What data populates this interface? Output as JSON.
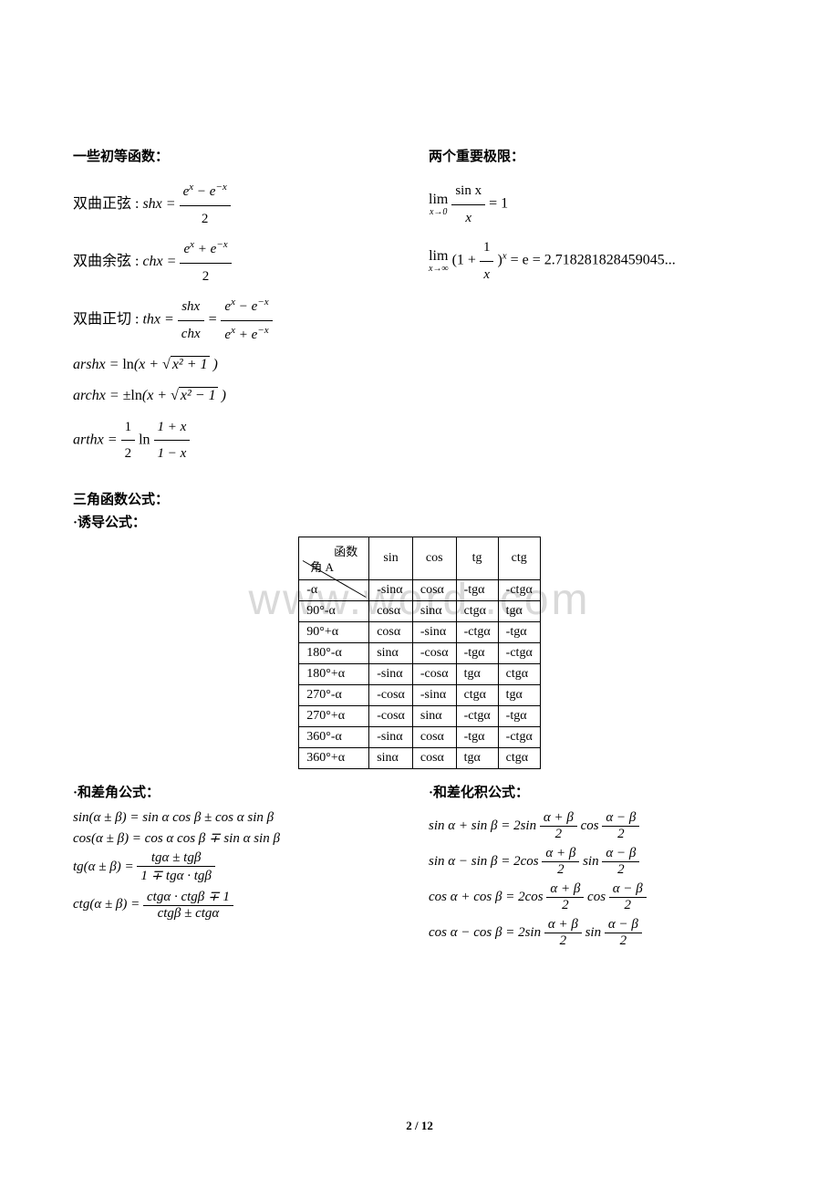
{
  "heading_left": "一些初等函数：",
  "heading_right": "两个重要极限：",
  "hyper_sin_label": "双曲正弦 :",
  "hyper_cos_label": "双曲余弦 :",
  "hyper_tan_label": "双曲正切 :",
  "shx": "shx",
  "chx": "chx",
  "thx": "thx",
  "frac_shx_num": "e",
  "frac_shx_num_exp1": "x",
  "frac_shx_num_minus": " − e",
  "frac_shx_num_exp2": "−x",
  "frac_den2": "2",
  "frac_chx_num_plus": " + e",
  "arshx": "arshx",
  "archx": "archx",
  "arthx": "arthx",
  "ln": "ln",
  "lim_label": "lim",
  "lim1_sub": "x→0",
  "lim1_frac_num": "sin x",
  "lim1_frac_den": "x",
  "lim1_rhs": " = 1",
  "lim2_sub": "x→∞",
  "lim2_expr_a": "(1 + ",
  "lim2_frac_num": "1",
  "lim2_frac_den": "x",
  "lim2_expr_b": ")",
  "lim2_exp": "x",
  "lim2_rhs": " = e = 2.718281828459045...",
  "trig_heading": "三角函数公式：",
  "induction_heading": "·诱导公式：",
  "table_diag_func": "函数",
  "table_diag_angle": "角 A",
  "table_headers": [
    "sin",
    "cos",
    "tg",
    "ctg"
  ],
  "table_rows": [
    {
      "angle": "-α",
      "cells": [
        "-sinα",
        "cosα",
        "-tgα",
        "-ctgα"
      ]
    },
    {
      "angle": "90°-α",
      "cells": [
        "cosα",
        "sinα",
        "ctgα",
        "tgα"
      ]
    },
    {
      "angle": "90°+α",
      "cells": [
        "cosα",
        "-sinα",
        "-ctgα",
        "-tgα"
      ]
    },
    {
      "angle": "180°-α",
      "cells": [
        "sinα",
        "-cosα",
        "-tgα",
        "-ctgα"
      ]
    },
    {
      "angle": "180°+α",
      "cells": [
        "-sinα",
        "-cosα",
        "tgα",
        "ctgα"
      ]
    },
    {
      "angle": "270°-α",
      "cells": [
        "-cosα",
        "-sinα",
        "ctgα",
        "tgα"
      ]
    },
    {
      "angle": "270°+α",
      "cells": [
        "-cosα",
        "sinα",
        "-ctgα",
        "-tgα"
      ]
    },
    {
      "angle": "360°-α",
      "cells": [
        "-sinα",
        "cosα",
        "-tgα",
        "-ctgα"
      ]
    },
    {
      "angle": "360°+α",
      "cells": [
        "sinα",
        "cosα",
        "tgα",
        "ctgα"
      ]
    }
  ],
  "sum_diff_heading": "·和差角公式：",
  "sum_prod_heading": "·和差化积公式：",
  "sd1": "sin(α ± β) = sin α cos β ± cos α sin β",
  "sd2": "cos(α ± β) = cos α cos β ∓ sin α sin β",
  "sd3_lhs": "tg(α ± β) = ",
  "sd3_num": "tgα ± tgβ",
  "sd3_den": "1 ∓ tgα · tgβ",
  "sd4_lhs": "ctg(α ± β) = ",
  "sd4_num": "ctgα · ctgβ ∓ 1",
  "sd4_den": "ctgβ ± ctgα",
  "sp1_lhs": "sin α + sin β = 2sin",
  "sp_half_sum_num": "α + β",
  "sp_half_diff_num": "α − β",
  "sp_half_den": "2",
  "sp1_mid": "cos",
  "sp2_lhs": "sin α − sin β = 2cos",
  "sp2_mid": "sin",
  "sp3_lhs": "cos α + cos β = 2cos",
  "sp3_mid": "cos",
  "sp4_lhs": "cos α − cos β = 2sin",
  "sp4_mid": "sin",
  "watermark_text": "www.word  .com",
  "page_current": "2",
  "page_sep": " / ",
  "page_total": "12",
  "arshx_rhs_a": " = ",
  "arshx_rhs_b": "(x + √",
  "arshx_sqrt": "x² + 1",
  "arshx_rhs_c": " )",
  "archx_rhs_a": " = ±",
  "archx_rhs_b": "(x + √",
  "archx_sqrt": "x² − 1",
  "archx_rhs_c": " )",
  "arthx_rhs_a": " = ",
  "arthx_frac1_num": "1",
  "arthx_frac1_den": "2",
  "arthx_rhs_b": " ",
  "arthx_frac2_num": "1 + x",
  "arthx_frac2_den": "1 − x"
}
